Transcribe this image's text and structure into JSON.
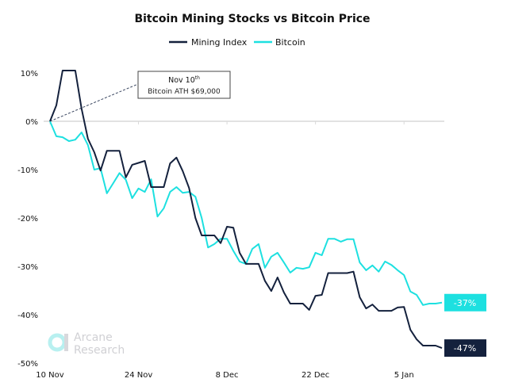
{
  "chart_data": {
    "type": "line",
    "title": "Bitcoin Mining Stocks vs Bitcoin Price",
    "legend_position": "top",
    "grid": false,
    "ylim": [
      -50,
      10
    ],
    "y_ticks": [
      "10%",
      "0%",
      "-10%",
      "-20%",
      "-30%",
      "-40%",
      "-50%"
    ],
    "y_tick_values": [
      10,
      0,
      -10,
      -20,
      -30,
      -40,
      -50
    ],
    "x_tick_labels": [
      "10 Nov",
      "24 Nov",
      "8 Dec",
      "22 Dec",
      "5 Jan"
    ],
    "x_tick_dates": [
      "Nov 10",
      "Nov 24",
      "Dec 8",
      "Dec 22",
      "Jan 5"
    ],
    "x": [
      "Nov 10",
      "Nov 11",
      "Nov 12",
      "Nov 13",
      "Nov 14",
      "Nov 15",
      "Nov 16",
      "Nov 17",
      "Nov 18",
      "Nov 19",
      "Nov 20",
      "Nov 21",
      "Nov 22",
      "Nov 23",
      "Nov 24",
      "Nov 25",
      "Nov 26",
      "Nov 27",
      "Nov 28",
      "Nov 29",
      "Nov 30",
      "Dec 1",
      "Dec 2",
      "Dec 3",
      "Dec 4",
      "Dec 5",
      "Dec 6",
      "Dec 7",
      "Dec 8",
      "Dec 9",
      "Dec 10",
      "Dec 11",
      "Dec 12",
      "Dec 13",
      "Dec 14",
      "Dec 15",
      "Dec 16",
      "Dec 17",
      "Dec 18",
      "Dec 19",
      "Dec 20",
      "Dec 21",
      "Dec 22",
      "Dec 23",
      "Dec 24",
      "Dec 25",
      "Dec 26",
      "Dec 27",
      "Dec 28",
      "Dec 29",
      "Dec 30",
      "Dec 31",
      "Jan 1",
      "Jan 2",
      "Jan 3",
      "Jan 4",
      "Jan 5",
      "Jan 6",
      "Jan 7",
      "Jan 8",
      "Jan 9",
      "Jan 10",
      "Jan 11"
    ],
    "series": [
      {
        "name": "Mining Index",
        "color": "#14213d",
        "end_label": "-47%",
        "values": [
          0,
          3.3,
          10.5,
          10.5,
          10.5,
          2.6,
          -3.6,
          -6.4,
          -10.2,
          -6.1,
          -6.1,
          -6.1,
          -11.6,
          -9.0,
          -8.6,
          -8.2,
          -13.6,
          -13.6,
          -13.6,
          -8.7,
          -7.5,
          -10.3,
          -13.8,
          -20,
          -23.6,
          -23.6,
          -23.6,
          -25.2,
          -21.8,
          -22.0,
          -27.2,
          -29.5,
          -29.5,
          -29.5,
          -33.0,
          -35.1,
          -32.3,
          -35.4,
          -37.7,
          -37.7,
          -37.7,
          -39.0,
          -36.1,
          -35.9,
          -31.4,
          -31.4,
          -31.4,
          -31.4,
          -31.1,
          -36.4,
          -38.7,
          -37.9,
          -39.2,
          -39.2,
          -39.2,
          -38.5,
          -38.4,
          -43.1,
          -45.1,
          -46.4,
          -46.4,
          -46.4,
          -46.9
        ]
      },
      {
        "name": "Bitcoin",
        "color": "#1de0e0",
        "end_label": "-37%",
        "values": [
          0,
          -3.1,
          -3.3,
          -4.1,
          -3.8,
          -2.3,
          -4.9,
          -10.0,
          -9.7,
          -14.9,
          -12.8,
          -10.7,
          -12.1,
          -15.9,
          -13.9,
          -14.6,
          -12.0,
          -19.7,
          -18.0,
          -14.6,
          -13.6,
          -14.8,
          -14.6,
          -15.6,
          -20,
          -26.1,
          -25.4,
          -24.3,
          -24.3,
          -26.8,
          -29.0,
          -29.5,
          -26.4,
          -25.4,
          -30.3,
          -28.0,
          -27.2,
          -29.2,
          -31.3,
          -30.3,
          -30.5,
          -30.2,
          -27.2,
          -27.7,
          -24.3,
          -24.3,
          -24.9,
          -24.4,
          -24.4,
          -29.2,
          -30.8,
          -29.8,
          -31.1,
          -29.0,
          -29.7,
          -30.8,
          -31.8,
          -35.2,
          -35.9,
          -38.0,
          -37.7,
          -37.7,
          -37.5
        ]
      }
    ],
    "annotation": {
      "title": "Nov 10",
      "title_sup": "th",
      "text": "Bitcoin ATH $69,000"
    }
  },
  "logo": {
    "line1": "Arcane",
    "line2": "Research"
  }
}
